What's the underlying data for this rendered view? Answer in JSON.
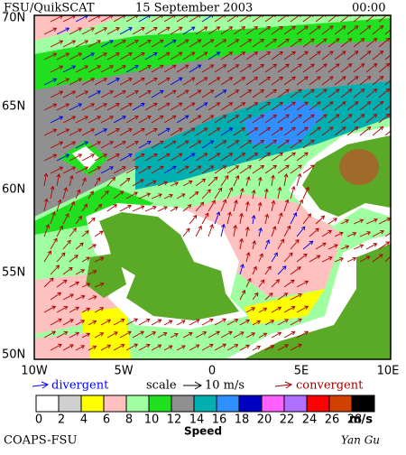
{
  "header": {
    "source": "FSU/QuikSCAT",
    "date": "15 September 2003",
    "time": "00:00"
  },
  "map": {
    "lat_labels": [
      "70N",
      "65N",
      "60N",
      "55N",
      "50N"
    ],
    "lon_labels": [
      "10W",
      "5W",
      "0",
      "5E",
      "10E"
    ]
  },
  "legend": {
    "divergent": "divergent",
    "scale": "scale",
    "scale_value": "10 m/s",
    "convergent": "convergent"
  },
  "colorbar": {
    "labels": [
      0,
      2,
      4,
      6,
      8,
      10,
      12,
      14,
      16,
      18,
      20,
      22,
      24,
      26,
      28
    ],
    "colors": [
      "#ffffff",
      "#d0d0d0",
      "#ffff00",
      "#ffc0c0",
      "#a0ffa0",
      "#20e020",
      "#909090",
      "#00b0b0",
      "#3090ff",
      "#0000c0",
      "#ff60ff",
      "#b070ff",
      "#ff0000",
      "#d04000",
      "#000000"
    ],
    "unit": "m/s",
    "title": "Speed"
  },
  "footer": {
    "credit": "COAPS-FSU",
    "signature": "Yan Gu"
  }
}
